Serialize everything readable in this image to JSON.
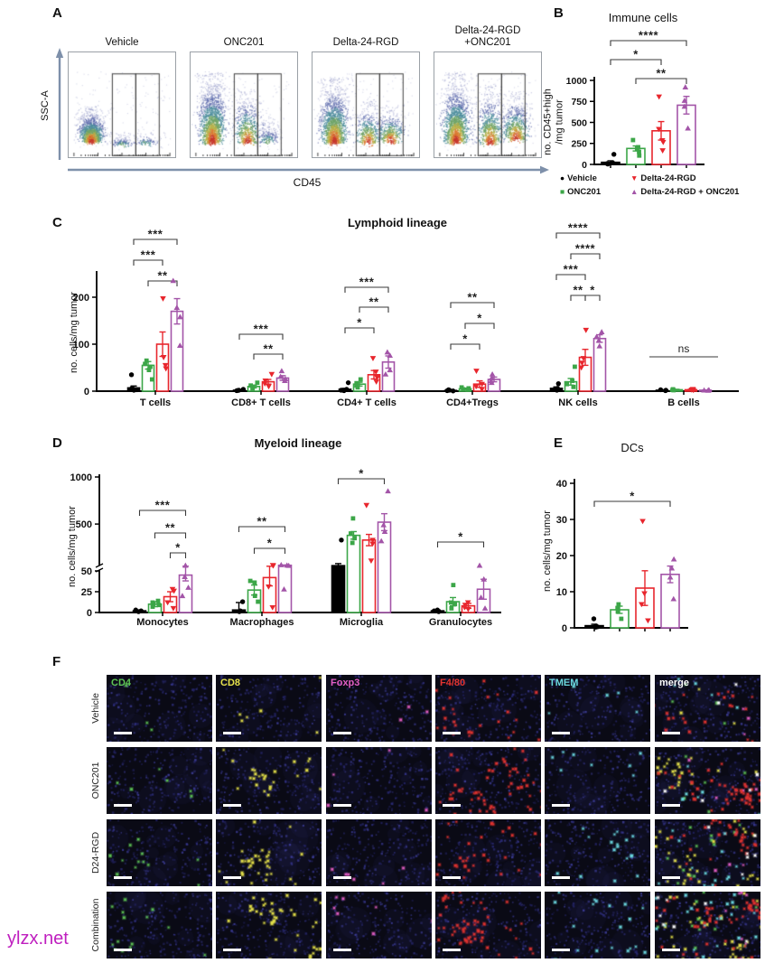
{
  "watermark": "ylzx.net",
  "panel_labels": {
    "a": "A",
    "b": "B",
    "c": "C",
    "d": "D",
    "e": "E",
    "f": "F"
  },
  "series": [
    {
      "key": "vehicle",
      "label": "Vehicle",
      "color": "#000000",
      "marker": "circle"
    },
    {
      "key": "onc201",
      "label": "ONC201",
      "color": "#3CA648",
      "marker": "square"
    },
    {
      "key": "d24rgd",
      "label": "Delta-24-RGD",
      "color": "#E8262D",
      "marker": "triangle-down"
    },
    {
      "key": "combo",
      "label": "Delta-24-RGD + ONC201",
      "color": "#A355A8",
      "marker": "triangle-up"
    }
  ],
  "flow_panel": {
    "xlabel": "CD45",
    "ylabel": "SSC-A",
    "plots": [
      {
        "title": "Vehicle",
        "clusters": [
          [
            0.21,
            0.85,
            0.045,
            0.3,
            1250,
            0
          ],
          [
            0.5,
            0.88,
            0.05,
            0.1,
            150,
            1
          ],
          [
            0.72,
            0.87,
            0.055,
            0.09,
            110,
            1
          ]
        ]
      },
      {
        "title": "ONC201",
        "clusters": [
          [
            0.2,
            0.86,
            0.05,
            0.62,
            1600,
            0
          ],
          [
            0.53,
            0.87,
            0.048,
            0.5,
            600,
            0
          ],
          [
            0.72,
            0.85,
            0.05,
            0.22,
            220,
            1
          ]
        ]
      },
      {
        "title": "Delta-24-RGD",
        "clusters": [
          [
            0.2,
            0.86,
            0.05,
            0.58,
            1500,
            0
          ],
          [
            0.52,
            0.87,
            0.048,
            0.38,
            450,
            0
          ],
          [
            0.73,
            0.85,
            0.05,
            0.32,
            450,
            0
          ]
        ]
      },
      {
        "title": "Delta-24-RGD\n+ONC201",
        "clusters": [
          [
            0.2,
            0.86,
            0.05,
            0.62,
            1500,
            0
          ],
          [
            0.52,
            0.87,
            0.048,
            0.52,
            700,
            0
          ],
          [
            0.76,
            0.83,
            0.05,
            0.42,
            650,
            0
          ]
        ]
      }
    ]
  },
  "chart_data": [
    {
      "panel": "B",
      "type": "bar",
      "title": "Immune cells",
      "ylabel_lines": [
        "no. CD45+high",
        "/mg tumor"
      ],
      "ylim": [
        0,
        1000
      ],
      "yticks": [
        0,
        250,
        500,
        750,
        1000
      ],
      "groups": [
        {
          "label": "",
          "bars": [
            {
              "mean": 25,
              "err": 18,
              "points": [
                5,
                10,
                18,
                120
              ]
            },
            {
              "mean": 190,
              "err": 30,
              "points": [
                105,
                150,
                185,
                205,
                290
              ]
            },
            {
              "mean": 400,
              "err": 110,
              "points": [
                165,
                265,
                285,
                420,
                805
              ]
            },
            {
              "mean": 705,
              "err": 105,
              "points": [
                430,
                690,
                760,
                920
              ]
            }
          ]
        }
      ],
      "brackets": [
        {
          "group": 0,
          "from": 0,
          "to": 3,
          "stars": "****",
          "y": 45
        },
        {
          "group": 0,
          "from": 0,
          "to": 2,
          "stars": "*",
          "y": 66
        },
        {
          "group": 0,
          "from": 1,
          "to": 3,
          "stars": "**",
          "y": 87
        }
      ]
    },
    {
      "panel": "C",
      "type": "bar",
      "title": "Lymphoid lineage",
      "ylabel": "no. cells/mg tumor",
      "ylim": [
        0,
        250
      ],
      "yticks": [
        0,
        100,
        200
      ],
      "groups": [
        {
          "label": "T cells",
          "bars": [
            {
              "mean": 7,
              "err": 4,
              "points": [
                2,
                3,
                6,
                35
              ]
            },
            {
              "mean": 55,
              "err": 8,
              "points": [
                25,
                45,
                52,
                58,
                65
              ]
            },
            {
              "mean": 100,
              "err": 26,
              "points": [
                48,
                55,
                72,
                197
              ]
            },
            {
              "mean": 170,
              "err": 27,
              "points": [
                97,
                158,
                178,
                235
              ]
            }
          ]
        },
        {
          "label": "CD8+ T cells",
          "bars": [
            {
              "mean": 2,
              "err": 1,
              "points": [
                1,
                1.5,
                2,
                4
              ]
            },
            {
              "mean": 10,
              "err": 3,
              "points": [
                5,
                8,
                12,
                18
              ]
            },
            {
              "mean": 20,
              "err": 5,
              "points": [
                10,
                16,
                22,
                36
              ]
            },
            {
              "mean": 28,
              "err": 5,
              "points": [
                22,
                26,
                31,
                43
              ]
            }
          ]
        },
        {
          "label": "CD4+ T cells",
          "bars": [
            {
              "mean": 4,
              "err": 2,
              "points": [
                1,
                2,
                4,
                18
              ]
            },
            {
              "mean": 15,
              "err": 4,
              "points": [
                8,
                12,
                17,
                25
              ]
            },
            {
              "mean": 35,
              "err": 9,
              "points": [
                20,
                29,
                41,
                70
              ]
            },
            {
              "mean": 62,
              "err": 13,
              "points": [
                36,
                45,
                76,
                83
              ]
            }
          ]
        },
        {
          "label": "CD4+Tregs",
          "bars": [
            {
              "mean": 1.5,
              "err": 1,
              "points": [
                0.5,
                1,
                2,
                3
              ]
            },
            {
              "mean": 5,
              "err": 1.5,
              "points": [
                3,
                4,
                6,
                8
              ]
            },
            {
              "mean": 15,
              "err": 7,
              "points": [
                4,
                10,
                15,
                43
              ]
            },
            {
              "mean": 25,
              "err": 5,
              "points": [
                18,
                22,
                28,
                36
              ]
            }
          ]
        },
        {
          "label": "NK cells",
          "bars": [
            {
              "mean": 6,
              "err": 3,
              "points": [
                2,
                4,
                6,
                16
              ]
            },
            {
              "mean": 20,
              "err": 7,
              "points": [
                9,
                15,
                22,
                52
              ]
            },
            {
              "mean": 72,
              "err": 17,
              "points": [
                50,
                60,
                70,
                130
              ]
            },
            {
              "mean": 112,
              "err": 8,
              "points": [
                96,
                108,
                116,
                126
              ]
            }
          ]
        },
        {
          "label": "B cells",
          "bars": [
            {
              "mean": 2,
              "err": 1,
              "points": [
                1,
                2,
                3
              ]
            },
            {
              "mean": 3,
              "err": 1,
              "points": [
                2,
                3,
                4
              ]
            },
            {
              "mean": 3,
              "err": 1,
              "points": [
                2,
                3,
                4
              ]
            },
            {
              "mean": 2,
              "err": 0.5,
              "points": [
                1.5,
                2,
                2.5
              ]
            }
          ]
        }
      ],
      "brackets": [
        {
          "group": 0,
          "from": 0,
          "to": 3,
          "stars": "***",
          "y": 28
        },
        {
          "group": 0,
          "from": 0,
          "to": 2,
          "stars": "***",
          "y": 51
        },
        {
          "group": 0,
          "from": 1,
          "to": 3,
          "stars": "**",
          "y": 74
        },
        {
          "group": 1,
          "from": 0,
          "to": 3,
          "stars": "***",
          "y": 133
        },
        {
          "group": 1,
          "from": 1,
          "to": 3,
          "stars": "**",
          "y": 155
        },
        {
          "group": 2,
          "from": 0,
          "to": 3,
          "stars": "***",
          "y": 81
        },
        {
          "group": 2,
          "from": 1,
          "to": 3,
          "stars": "**",
          "y": 103
        },
        {
          "group": 2,
          "from": 0,
          "to": 2,
          "stars": "*",
          "y": 126
        },
        {
          "group": 3,
          "from": 0,
          "to": 3,
          "stars": "**",
          "y": 98
        },
        {
          "group": 3,
          "from": 1,
          "to": 3,
          "stars": "*",
          "y": 121
        },
        {
          "group": 3,
          "from": 0,
          "to": 2,
          "stars": "*",
          "y": 144
        },
        {
          "group": 4,
          "from": 0,
          "to": 3,
          "stars": "****",
          "y": 21
        },
        {
          "group": 4,
          "from": 1,
          "to": 3,
          "stars": "****",
          "y": 44
        },
        {
          "group": 4,
          "from": 0,
          "to": 2,
          "stars": "***",
          "y": 67
        },
        {
          "group": 4,
          "from": 1,
          "to": 2,
          "stars": "**",
          "y": 90
        },
        {
          "group": 4,
          "from": 2,
          "to": 3,
          "stars": "*",
          "y": 90
        }
      ],
      "ns": [
        {
          "group": 5,
          "label": "ns",
          "y": 158
        }
      ]
    },
    {
      "panel": "D",
      "type": "bar",
      "title": "Myeloid lineage",
      "ylabel": "no. cells/mg tumor",
      "axis_break": true,
      "ylim_lower": [
        0,
        50
      ],
      "ylim_upper": [
        50,
        1000
      ],
      "yticks_lower": [
        0,
        25,
        50
      ],
      "yticks_upper": [
        500,
        1000
      ],
      "groups": [
        {
          "label": "Monocytes",
          "bars": [
            {
              "mean": 2,
              "err": 1,
              "points": [
                1,
                2,
                3
              ]
            },
            {
              "mean": 10,
              "err": 3,
              "points": [
                7,
                9,
                12,
                14
              ]
            },
            {
              "mean": 19,
              "err": 6,
              "points": [
                5,
                12,
                26,
                28
              ]
            },
            {
              "mean": 45,
              "err": 7,
              "points": [
                20,
                30,
                43,
                60
              ]
            }
          ]
        },
        {
          "label": "Macrophages",
          "bars": [
            {
              "mean": 3,
              "err": 9,
              "points": [
                1,
                2,
                13
              ]
            },
            {
              "mean": 27,
              "err": 6,
              "points": [
                13,
                20,
                36,
                38
              ]
            },
            {
              "mean": 42,
              "err": 10,
              "points": [
                6,
                31,
                58,
                62
              ]
            },
            {
              "mean": 62,
              "err": 3,
              "points": [
                28,
                58,
                62,
                66
              ]
            }
          ]
        },
        {
          "label": "Microglia",
          "bars": [
            {
              "mean": 58,
              "err": 22,
              "points": [
                12,
                15,
                45,
                330
              ]
            },
            {
              "mean": 380,
              "err": 40,
              "points": [
                300,
                350,
                400,
                560
              ]
            },
            {
              "mean": 330,
              "err": 60,
              "points": [
                110,
                290,
                330,
                700
              ]
            },
            {
              "mean": 520,
              "err": 90,
              "points": [
                320,
                420,
                490,
                850
              ]
            }
          ]
        },
        {
          "label": "Granulocytes",
          "bars": [
            {
              "mean": 2,
              "err": 1,
              "points": [
                1,
                2,
                3
              ]
            },
            {
              "mean": 13,
              "err": 5,
              "points": [
                5,
                10,
                12,
                33
              ]
            },
            {
              "mean": 8,
              "err": 3,
              "points": [
                4,
                6,
                9,
                12
              ]
            },
            {
              "mean": 28,
              "err": 12,
              "points": [
                5,
                18,
                40,
                60
              ]
            }
          ]
        }
      ],
      "brackets": [
        {
          "group": 0,
          "from": 0,
          "to": 3,
          "stars": "***",
          "y": 85
        },
        {
          "group": 0,
          "from": 1,
          "to": 3,
          "stars": "**",
          "y": 110
        },
        {
          "group": 0,
          "from": 2,
          "to": 3,
          "stars": "*",
          "y": 132
        },
        {
          "group": 1,
          "from": 0,
          "to": 3,
          "stars": "**",
          "y": 103
        },
        {
          "group": 1,
          "from": 1,
          "to": 3,
          "stars": "*",
          "y": 127
        },
        {
          "group": 2,
          "from": 0,
          "to": 3,
          "stars": "*",
          "y": 50
        },
        {
          "group": 3,
          "from": 0,
          "to": 3,
          "stars": "*",
          "y": 120
        }
      ]
    },
    {
      "panel": "E",
      "type": "bar",
      "title": "DCs",
      "ylabel": "no. cells/mg tumor",
      "ylim": [
        0,
        40
      ],
      "yticks": [
        0,
        10,
        20,
        30,
        40
      ],
      "groups": [
        {
          "label": "",
          "bars": [
            {
              "mean": 0.6,
              "err": 0.4,
              "points": [
                0.2,
                0.3,
                0.5,
                2.5
              ]
            },
            {
              "mean": 5,
              "err": 1,
              "points": [
                2.5,
                4.5,
                5.5,
                6.5
              ]
            },
            {
              "mean": 11,
              "err": 4.8,
              "points": [
                2,
                6.5,
                9.5,
                29.5
              ]
            },
            {
              "mean": 14.8,
              "err": 2.3,
              "points": [
                8,
                14,
                16.5,
                19
              ]
            }
          ]
        }
      ],
      "brackets": [
        {
          "group": 0,
          "from": 0,
          "to": 3,
          "stars": "*",
          "y": 75
        }
      ]
    }
  ],
  "if_panel": {
    "rows": [
      "Vehicle",
      "ONC201",
      "D24-RGD",
      "Combination"
    ],
    "channels": [
      {
        "label": "CD4",
        "color": "#5ec455"
      },
      {
        "label": "CD8",
        "color": "#e6e14a"
      },
      {
        "label": "Foxp3",
        "color": "#e35ec4"
      },
      {
        "label": "F4/80",
        "color": "#e23430"
      },
      {
        "label": "TMEM",
        "color": "#6cd9e2"
      },
      {
        "label": "merge",
        "color": "#ffffff"
      }
    ],
    "signal_counts": [
      [
        4,
        6,
        3,
        26,
        6
      ],
      [
        6,
        26,
        4,
        60,
        8
      ],
      [
        13,
        34,
        6,
        38,
        18
      ],
      [
        15,
        48,
        8,
        65,
        22
      ]
    ],
    "white_specks": [
      2,
      4,
      6,
      8
    ]
  }
}
